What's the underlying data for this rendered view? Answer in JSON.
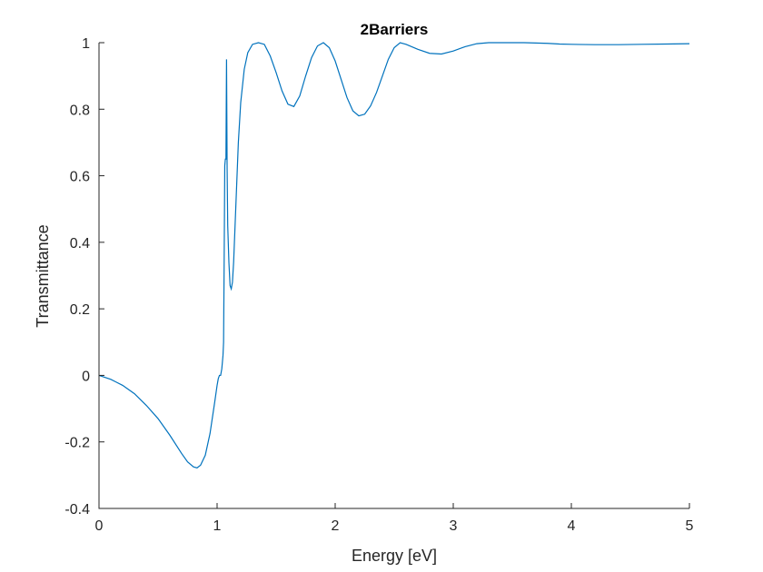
{
  "chart_data": {
    "type": "line",
    "title": "2Barriers",
    "xlabel": "Energy [eV]",
    "ylabel": "Transmittance",
    "xlim": [
      0,
      5
    ],
    "ylim": [
      -0.4,
      1
    ],
    "xticks": [
      0,
      1,
      2,
      3,
      4,
      5
    ],
    "xtick_labels": [
      "0",
      "1",
      "2",
      "3",
      "4",
      "5"
    ],
    "yticks": [
      -0.4,
      -0.2,
      0,
      0.2,
      0.4,
      0.6,
      0.8,
      1
    ],
    "ytick_labels": [
      "-0.4",
      "-0.2",
      "0",
      "0.2",
      "0.4",
      "0.6",
      "0.8",
      "1"
    ],
    "grid": false,
    "line_color": "#0072BD",
    "series": [
      {
        "x": [
          0,
          0.1,
          0.2,
          0.3,
          0.4,
          0.5,
          0.6,
          0.7,
          0.75,
          0.8,
          0.83,
          0.86,
          0.9,
          0.94,
          0.98,
          1.0,
          1.01,
          1.02,
          1.03,
          1.04,
          1.05,
          1.055,
          1.06,
          1.065,
          1.07,
          1.075,
          1.08,
          1.085,
          1.09,
          1.1,
          1.11,
          1.12,
          1.13,
          1.14,
          1.16,
          1.18,
          1.2,
          1.23,
          1.26,
          1.3,
          1.35,
          1.4,
          1.45,
          1.5,
          1.55,
          1.6,
          1.65,
          1.7,
          1.75,
          1.8,
          1.85,
          1.9,
          1.95,
          2.0,
          2.05,
          2.1,
          2.15,
          2.2,
          2.25,
          2.3,
          2.35,
          2.4,
          2.45,
          2.5,
          2.55,
          2.6,
          2.7,
          2.8,
          2.9,
          3.0,
          3.1,
          3.2,
          3.3,
          3.4,
          3.5,
          3.6,
          3.7,
          3.8,
          3.9,
          4.0,
          4.2,
          4.4,
          4.6,
          4.8,
          5.0
        ],
        "y": [
          0.0,
          -0.012,
          -0.03,
          -0.055,
          -0.09,
          -0.13,
          -0.18,
          -0.235,
          -0.26,
          -0.275,
          -0.278,
          -0.27,
          -0.24,
          -0.175,
          -0.08,
          -0.03,
          -0.01,
          0.0,
          0.0,
          0.02,
          0.06,
          0.1,
          0.35,
          0.63,
          0.65,
          0.65,
          0.95,
          0.62,
          0.45,
          0.34,
          0.27,
          0.26,
          0.28,
          0.34,
          0.52,
          0.7,
          0.82,
          0.92,
          0.97,
          0.995,
          1.0,
          0.995,
          0.96,
          0.91,
          0.855,
          0.815,
          0.808,
          0.84,
          0.9,
          0.955,
          0.99,
          1.0,
          0.985,
          0.945,
          0.89,
          0.835,
          0.795,
          0.78,
          0.785,
          0.81,
          0.85,
          0.9,
          0.95,
          0.985,
          1.0,
          0.995,
          0.98,
          0.968,
          0.966,
          0.975,
          0.988,
          0.997,
          1.0,
          1.0,
          1.0,
          1.0,
          0.999,
          0.998,
          0.996,
          0.995,
          0.994,
          0.994,
          0.995,
          0.996,
          0.997
        ]
      }
    ]
  }
}
